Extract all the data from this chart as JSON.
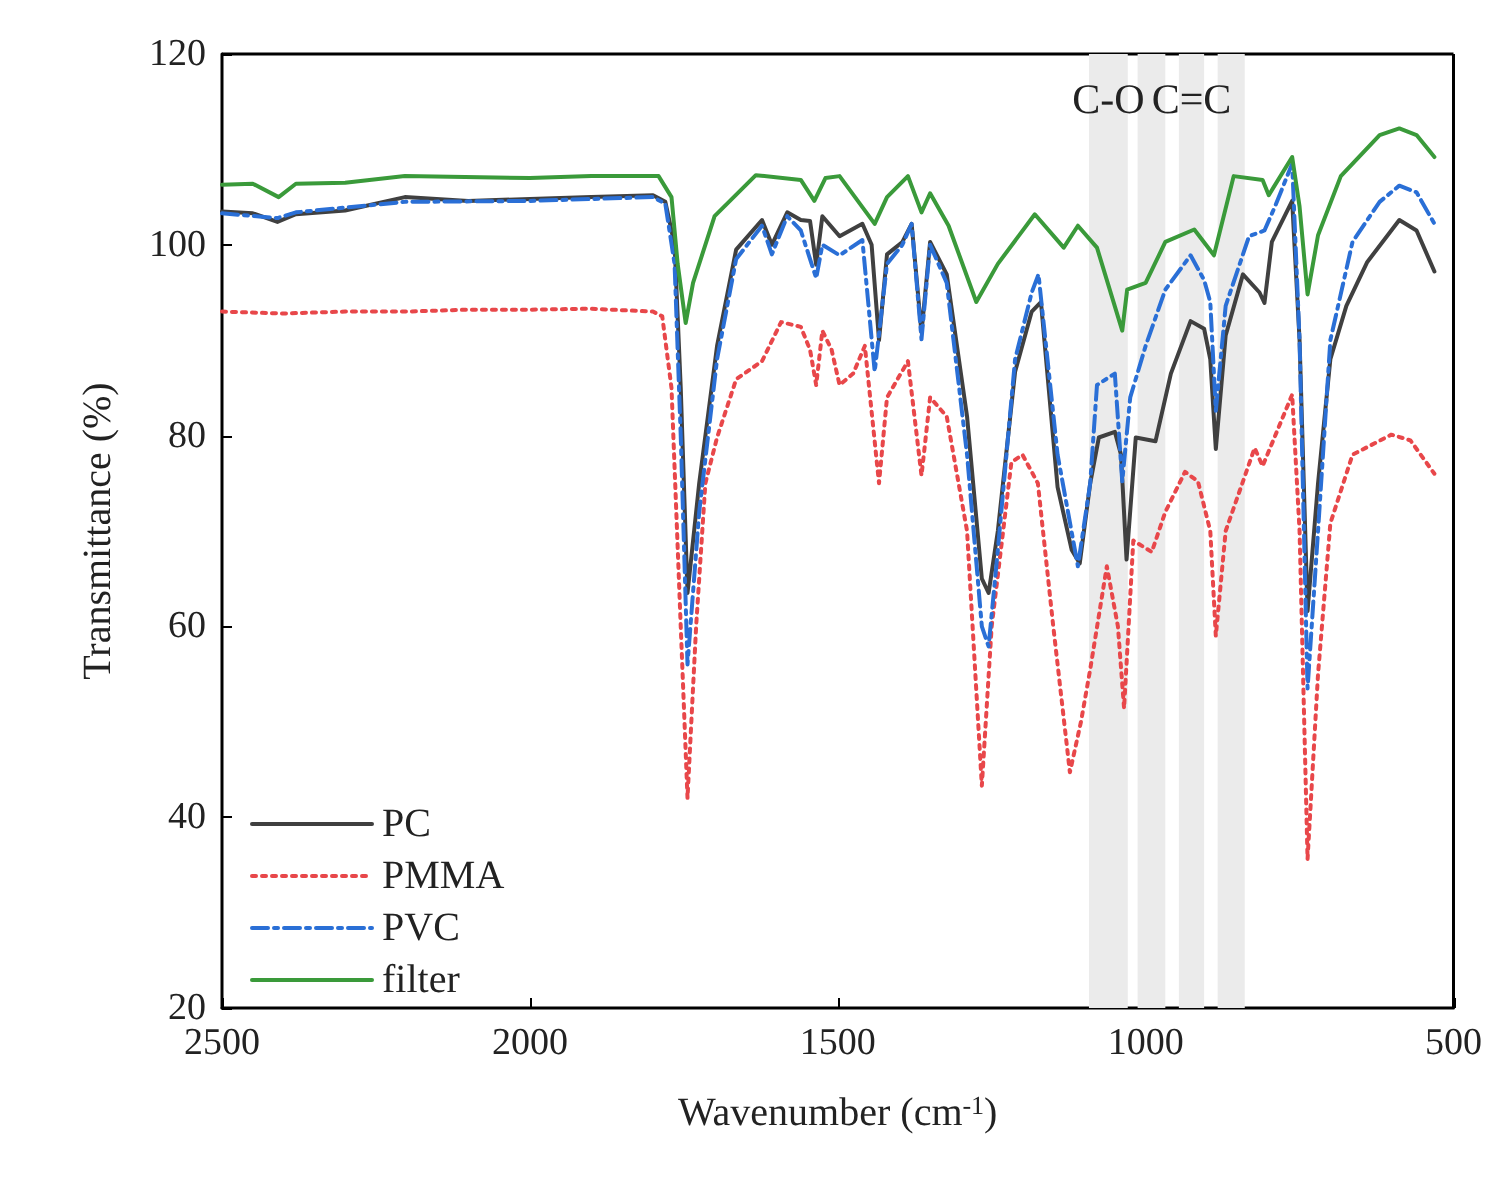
{
  "chart_data": {
    "type": "line",
    "xlabel": "Wavenumber (cm$^{-1}$)",
    "ylabel": "Transmittance (%)",
    "xlim": [
      2500,
      500
    ],
    "xticks": [
      2500,
      2000,
      1500,
      1000,
      500
    ],
    "ylim": [
      20,
      120
    ],
    "yticks": [
      20,
      40,
      60,
      80,
      100,
      120
    ],
    "grid": false,
    "legend": "bottom left",
    "marker": "none",
    "bands": [
      {
        "axis": "x",
        "from": 1092,
        "to": 1029,
        "color": "#ebebeb",
        "label": "C-O"
      },
      {
        "axis": "x",
        "from": 1013,
        "to": 968,
        "color": "#ebebeb"
      },
      {
        "axis": "x",
        "from": 946,
        "to": 905,
        "color": "#ebebeb",
        "label": "C=C"
      },
      {
        "axis": "x",
        "from": 883,
        "to": 839,
        "color": "#ebebeb"
      }
    ],
    "series": [
      {
        "name": "PC",
        "color": "#404040",
        "line_style": "solid",
        "x": [
          2500,
          2450,
          2410,
          2380,
          2300,
          2203,
          2100,
          2000,
          1900,
          1800,
          1780,
          1765,
          1755,
          1744,
          1725,
          1696,
          1665,
          1623,
          1607,
          1582,
          1560,
          1545,
          1535,
          1525,
          1497,
          1460,
          1445,
          1433,
          1420,
          1395,
          1380,
          1364,
          1350,
          1323,
          1290,
          1266,
          1255,
          1240,
          1212,
          1185,
          1170,
          1143,
          1120,
          1107,
          1090,
          1076,
          1050,
          1040,
          1031,
          1016,
          984,
          959,
          927,
          905,
          895,
          886,
          870,
          842,
          815,
          807,
          795,
          762,
          750,
          737,
          720,
          700,
          674,
          640,
          588,
          560,
          531
        ],
        "values": [
          103.5,
          103.3,
          102.4,
          103.2,
          103.6,
          105,
          104.6,
          104.8,
          105,
          105.2,
          104.5,
          100,
          85,
          63.5,
          75,
          89.4,
          99.5,
          102.6,
          100,
          103.4,
          102.6,
          102.5,
          97.9,
          103,
          100.9,
          102.2,
          100,
          90,
          99,
          100.3,
          102.2,
          90.8,
          100.3,
          96.9,
          82,
          65,
          63.5,
          70,
          86.7,
          93,
          94,
          74.6,
          68,
          66.6,
          75,
          79.8,
          80.4,
          78,
          67,
          79.8,
          79.4,
          86.5,
          92,
          91.2,
          88,
          78.6,
          90.5,
          96.9,
          95,
          93.9,
          100.3,
          104.6,
          90,
          61.6,
          75,
          88,
          93.6,
          98.2,
          102.6,
          101.5,
          97.2
        ]
      },
      {
        "name": "PMMA",
        "color": "#e8474a",
        "line_style": "dotted",
        "x": [
          2500,
          2400,
          2300,
          2200,
          2100,
          2000,
          1900,
          1800,
          1785,
          1770,
          1755,
          1744,
          1730,
          1715,
          1696,
          1665,
          1623,
          1592,
          1560,
          1545,
          1535,
          1525,
          1510,
          1497,
          1475,
          1456,
          1433,
          1420,
          1386,
          1364,
          1350,
          1323,
          1290,
          1266,
          1250,
          1218,
          1200,
          1175,
          1150,
          1123,
          1105,
          1090,
          1063,
          1045,
          1035,
          1020,
          990,
          968,
          936,
          915,
          895,
          886,
          870,
          823,
          810,
          762,
          750,
          737,
          720,
          700,
          664,
          601,
          570,
          531
        ],
        "values": [
          93,
          92.8,
          93,
          93,
          93.2,
          93.2,
          93.3,
          93,
          92.5,
          85,
          60,
          42,
          60,
          75,
          79.8,
          85.9,
          87.8,
          91.9,
          91.4,
          89,
          85.3,
          91,
          89,
          85.3,
          86.5,
          89.4,
          75,
          84,
          87.8,
          75.8,
          84,
          82,
          70,
          43.3,
          60,
          77.2,
          78,
          75,
          60,
          44.7,
          50,
          55.5,
          66.3,
          60,
          51.4,
          69,
          67.8,
          72,
          76.2,
          75.2,
          70,
          59,
          70,
          78.7,
          76.8,
          84.3,
          70,
          35.6,
          55,
          70.8,
          78,
          80.1,
          79.5,
          76
        ]
      },
      {
        "name": "PVC",
        "color": "#2a6fd6",
        "line_style": "dashed",
        "x": [
          2500,
          2410,
          2380,
          2203,
          2000,
          1800,
          1780,
          1765,
          1755,
          1744,
          1725,
          1696,
          1665,
          1623,
          1607,
          1582,
          1560,
          1535,
          1525,
          1497,
          1460,
          1440,
          1420,
          1395,
          1380,
          1364,
          1350,
          1323,
          1290,
          1266,
          1255,
          1240,
          1212,
          1185,
          1174,
          1143,
          1110,
          1090,
          1079,
          1050,
          1038,
          1025,
          1000,
          968,
          927,
          905,
          895,
          886,
          870,
          832,
          807,
          790,
          762,
          750,
          737,
          720,
          700,
          664,
          620,
          588,
          560,
          531
        ],
        "values": [
          103.3,
          102.8,
          103.4,
          104.5,
          104.6,
          105,
          104.3,
          98,
          80,
          56,
          72,
          88,
          98.5,
          102,
          99,
          103,
          101.5,
          96.5,
          100,
          98.9,
          100.5,
          86.7,
          98,
          100,
          102.2,
          90.1,
          100,
          96,
          78,
          60,
          57.9,
          68,
          88,
          95,
          96.9,
          78,
          66.3,
          75,
          85.3,
          86.5,
          75.2,
          84,
          89.4,
          95.3,
          98.9,
          96.3,
          94,
          82.6,
          93.6,
          100.9,
          101.5,
          104,
          108.5,
          90,
          53.5,
          70,
          90,
          100.3,
          104.5,
          106.2,
          105.5,
          102.2
        ]
      },
      {
        "name": "filter",
        "color": "#3a9a3a",
        "line_style": "solid",
        "x": [
          2500,
          2450,
          2408,
          2380,
          2300,
          2203,
          2000,
          1900,
          1791,
          1770,
          1760,
          1747,
          1735,
          1700,
          1633,
          1560,
          1538,
          1520,
          1497,
          1440,
          1420,
          1386,
          1364,
          1350,
          1320,
          1275,
          1240,
          1180,
          1133,
          1110,
          1079,
          1038,
          1030,
          1000,
          968,
          921,
          889,
          857,
          810,
          800,
          762,
          750,
          737,
          720,
          683,
          620,
          588,
          560,
          531
        ],
        "values": [
          106.3,
          106.4,
          105,
          106.4,
          106.5,
          107.2,
          107,
          107.2,
          107.2,
          105,
          98,
          91.8,
          96,
          103,
          107.3,
          106.8,
          104.6,
          107,
          107.2,
          102.2,
          105,
          107.2,
          103.4,
          105.4,
          102,
          94,
          98,
          103.2,
          99.7,
          102,
          99.7,
          91,
          95.3,
          96,
          100.3,
          101.6,
          98.9,
          107.2,
          106.8,
          105.2,
          109.2,
          104,
          94.8,
          101,
          107.2,
          111.5,
          112.2,
          111.5,
          109.2
        ]
      }
    ]
  }
}
